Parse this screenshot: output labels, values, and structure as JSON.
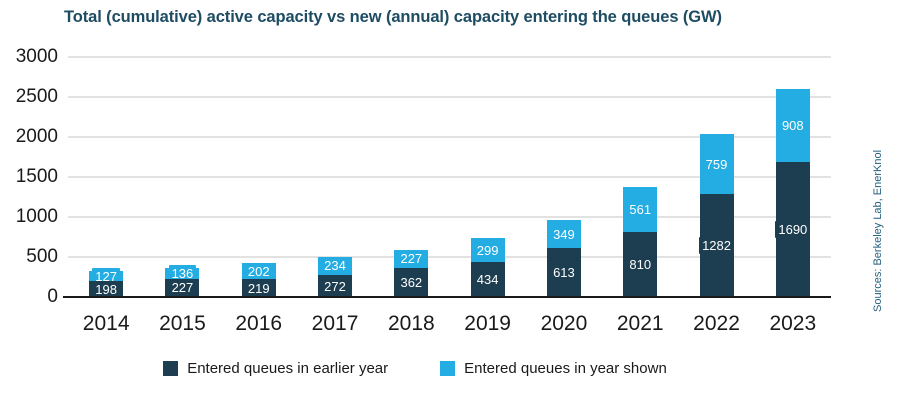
{
  "title": "Total (cumulative) active capacity vs new (annual) capacity entering the queues (GW)",
  "source_note": "Sources: Berkeley Lab, EnerKnol",
  "colors": {
    "earlier_year": "#1d3e50",
    "year_shown": "#23ade2",
    "title_text": "#1d4c63",
    "gridline": "#e2e2e2",
    "axis_line": "#1a1a1a",
    "bar_label_text": "#ffffff",
    "source_text": "#23607e"
  },
  "chart_data": {
    "type": "bar",
    "stacked": true,
    "title": "Total (cumulative) active capacity vs new (annual) capacity entering the queues (GW)",
    "xlabel": "",
    "ylabel": "",
    "categories": [
      "2014",
      "2015",
      "2016",
      "2017",
      "2018",
      "2019",
      "2020",
      "2021",
      "2022",
      "2023"
    ],
    "series": [
      {
        "name": "Entered queues in earlier year",
        "color": "#1d3e50",
        "values": [
          198,
          227,
          219,
          272,
          362,
          434,
          613,
          810,
          1282,
          1690
        ]
      },
      {
        "name": "Entered queues in year shown",
        "color": "#23ade2",
        "values": [
          127,
          136,
          202,
          234,
          227,
          299,
          349,
          561,
          759,
          908
        ]
      }
    ],
    "ylim": [
      0,
      3000
    ],
    "yticks": [
      0,
      500,
      1000,
      1500,
      2000,
      2500,
      3000
    ],
    "grid": "horizontal",
    "legend_position": "bottom",
    "data_labels": "inside-segment"
  }
}
